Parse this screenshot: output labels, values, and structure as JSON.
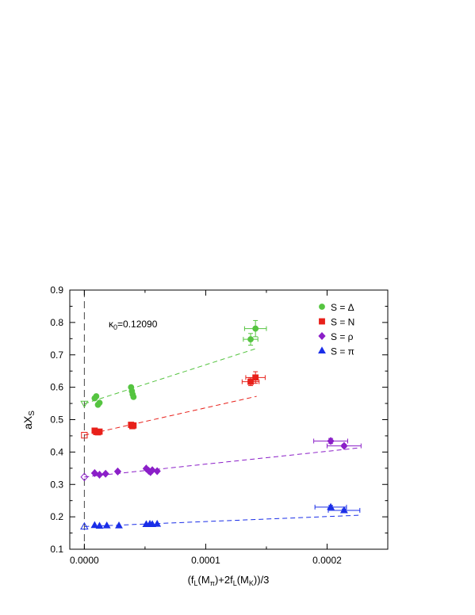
{
  "chart_data": {
    "type": "scatter",
    "xlabel": "(f_L(M_π)+2f_L(M_K))/3",
    "xlabel_parts": {
      "open": "(f",
      "sub1": "L",
      "mid1": "(M",
      "sub2": "π",
      "mid2": ")+2f",
      "sub3": "L",
      "mid3": "(M",
      "sub4": "K",
      "close": "))/3"
    },
    "ylabel": "aX_S",
    "ylabel_parts": {
      "base": "aX",
      "sub": "S"
    },
    "annotation": "κ_0=0.12090",
    "annotation_parts": {
      "base": "κ",
      "sub": "0",
      "rest": "=0.12090"
    },
    "xlim": [
      -1.2e-05,
      0.00025
    ],
    "ylim": [
      0.1,
      0.9
    ],
    "x_ticks": [
      "0.0000",
      "0.0001",
      "0.0002"
    ],
    "y_ticks": [
      "0.1",
      "0.2",
      "0.3",
      "0.4",
      "0.5",
      "0.6",
      "0.7",
      "0.8",
      "0.9"
    ],
    "legend_position": "top-right",
    "series": [
      {
        "name": "S = Δ",
        "color": "#55c440",
        "marker": "circle",
        "open_marker": "triangle-down",
        "points": [
          {
            "x": 8.5e-06,
            "y": 0.566
          },
          {
            "x": 9.8e-06,
            "y": 0.572
          },
          {
            "x": 1.12e-05,
            "y": 0.546
          },
          {
            "x": 1.25e-05,
            "y": 0.552
          },
          {
            "x": 3.85e-05,
            "y": 0.6
          },
          {
            "x": 3.92e-05,
            "y": 0.588
          },
          {
            "x": 3.98e-05,
            "y": 0.578
          },
          {
            "x": 4.05e-05,
            "y": 0.57
          },
          {
            "x": 0.000137,
            "y": 0.748
          },
          {
            "x": 0.000141,
            "y": 0.781
          }
        ],
        "xerr": [
          0,
          0,
          0,
          0,
          0,
          0,
          0,
          0,
          6e-06,
          9e-06
        ],
        "yerr": [
          0,
          0,
          0,
          0,
          0,
          0,
          0,
          0,
          0.018,
          0.025
        ],
        "fit": {
          "x0": 0.0,
          "y0": 0.549,
          "x1": 0.000142,
          "y1": 0.72
        },
        "extrapolated": {
          "x": 0.0,
          "y": 0.549
        }
      },
      {
        "name": "S = N",
        "color": "#e8201a",
        "marker": "square",
        "open_marker": "square",
        "points": [
          {
            "x": 8.5e-06,
            "y": 0.466
          },
          {
            "x": 9.8e-06,
            "y": 0.462
          },
          {
            "x": 1.12e-05,
            "y": 0.461
          },
          {
            "x": 1.25e-05,
            "y": 0.463
          },
          {
            "x": 3.85e-05,
            "y": 0.484
          },
          {
            "x": 3.95e-05,
            "y": 0.48
          },
          {
            "x": 4.05e-05,
            "y": 0.482
          },
          {
            "x": 0.000137,
            "y": 0.617
          },
          {
            "x": 0.000141,
            "y": 0.63
          }
        ],
        "xerr": [
          0,
          0,
          0,
          0,
          0,
          0,
          0,
          7e-06,
          8e-06
        ],
        "yerr": [
          0,
          0,
          0,
          0,
          0,
          0,
          0,
          0.012,
          0.018
        ],
        "fit": {
          "x0": 0.0,
          "y0": 0.452,
          "x1": 0.000142,
          "y1": 0.572
        },
        "extrapolated": {
          "x": 0.0,
          "y": 0.452
        }
      },
      {
        "name": "S = ρ",
        "color": "#8b1fc8",
        "marker": "diamond",
        "open_marker": "diamond",
        "points": [
          {
            "x": 8.5e-06,
            "y": 0.335
          },
          {
            "x": 1.25e-05,
            "y": 0.33
          },
          {
            "x": 1.75e-05,
            "y": 0.333
          },
          {
            "x": 2.75e-05,
            "y": 0.34
          },
          {
            "x": 5.1e-05,
            "y": 0.349
          },
          {
            "x": 5.3e-05,
            "y": 0.342
          },
          {
            "x": 5.45e-05,
            "y": 0.338
          },
          {
            "x": 5.6e-05,
            "y": 0.344
          },
          {
            "x": 6e-05,
            "y": 0.341
          },
          {
            "x": 0.000203,
            "y": 0.434
          },
          {
            "x": 0.000214,
            "y": 0.419
          }
        ],
        "xerr": [
          0,
          0,
          0,
          0,
          0,
          0,
          0,
          0,
          0,
          1.4e-05,
          1.4e-05
        ],
        "yerr": [
          0,
          0,
          0,
          0,
          0,
          0,
          0,
          0,
          0,
          0.008,
          0.005
        ],
        "fit": {
          "x0": 0.0,
          "y0": 0.323,
          "x1": 0.000227,
          "y1": 0.413
        },
        "extrapolated": {
          "x": 0.0,
          "y": 0.323
        }
      },
      {
        "name": "S = π",
        "color": "#1a2ee8",
        "marker": "triangle",
        "open_marker": "triangle",
        "points": [
          {
            "x": 8.5e-06,
            "y": 0.174
          },
          {
            "x": 1.25e-05,
            "y": 0.172
          },
          {
            "x": 1.85e-05,
            "y": 0.173
          },
          {
            "x": 2.85e-05,
            "y": 0.173
          },
          {
            "x": 5.1e-05,
            "y": 0.177
          },
          {
            "x": 5.4e-05,
            "y": 0.178
          },
          {
            "x": 5.6e-05,
            "y": 0.177
          },
          {
            "x": 6e-05,
            "y": 0.178
          },
          {
            "x": 0.000203,
            "y": 0.23
          },
          {
            "x": 0.000214,
            "y": 0.22
          }
        ],
        "xerr": [
          0,
          0,
          0,
          0,
          0,
          0,
          0,
          0,
          1.3e-05,
          1.3e-05
        ],
        "yerr": [
          0,
          0,
          0,
          0,
          0,
          0,
          0,
          0,
          0.005,
          0.004
        ],
        "fit": {
          "x0": 0.0,
          "y0": 0.17,
          "x1": 0.000227,
          "y1": 0.205
        },
        "extrapolated": {
          "x": 0.0,
          "y": 0.17
        }
      }
    ]
  }
}
